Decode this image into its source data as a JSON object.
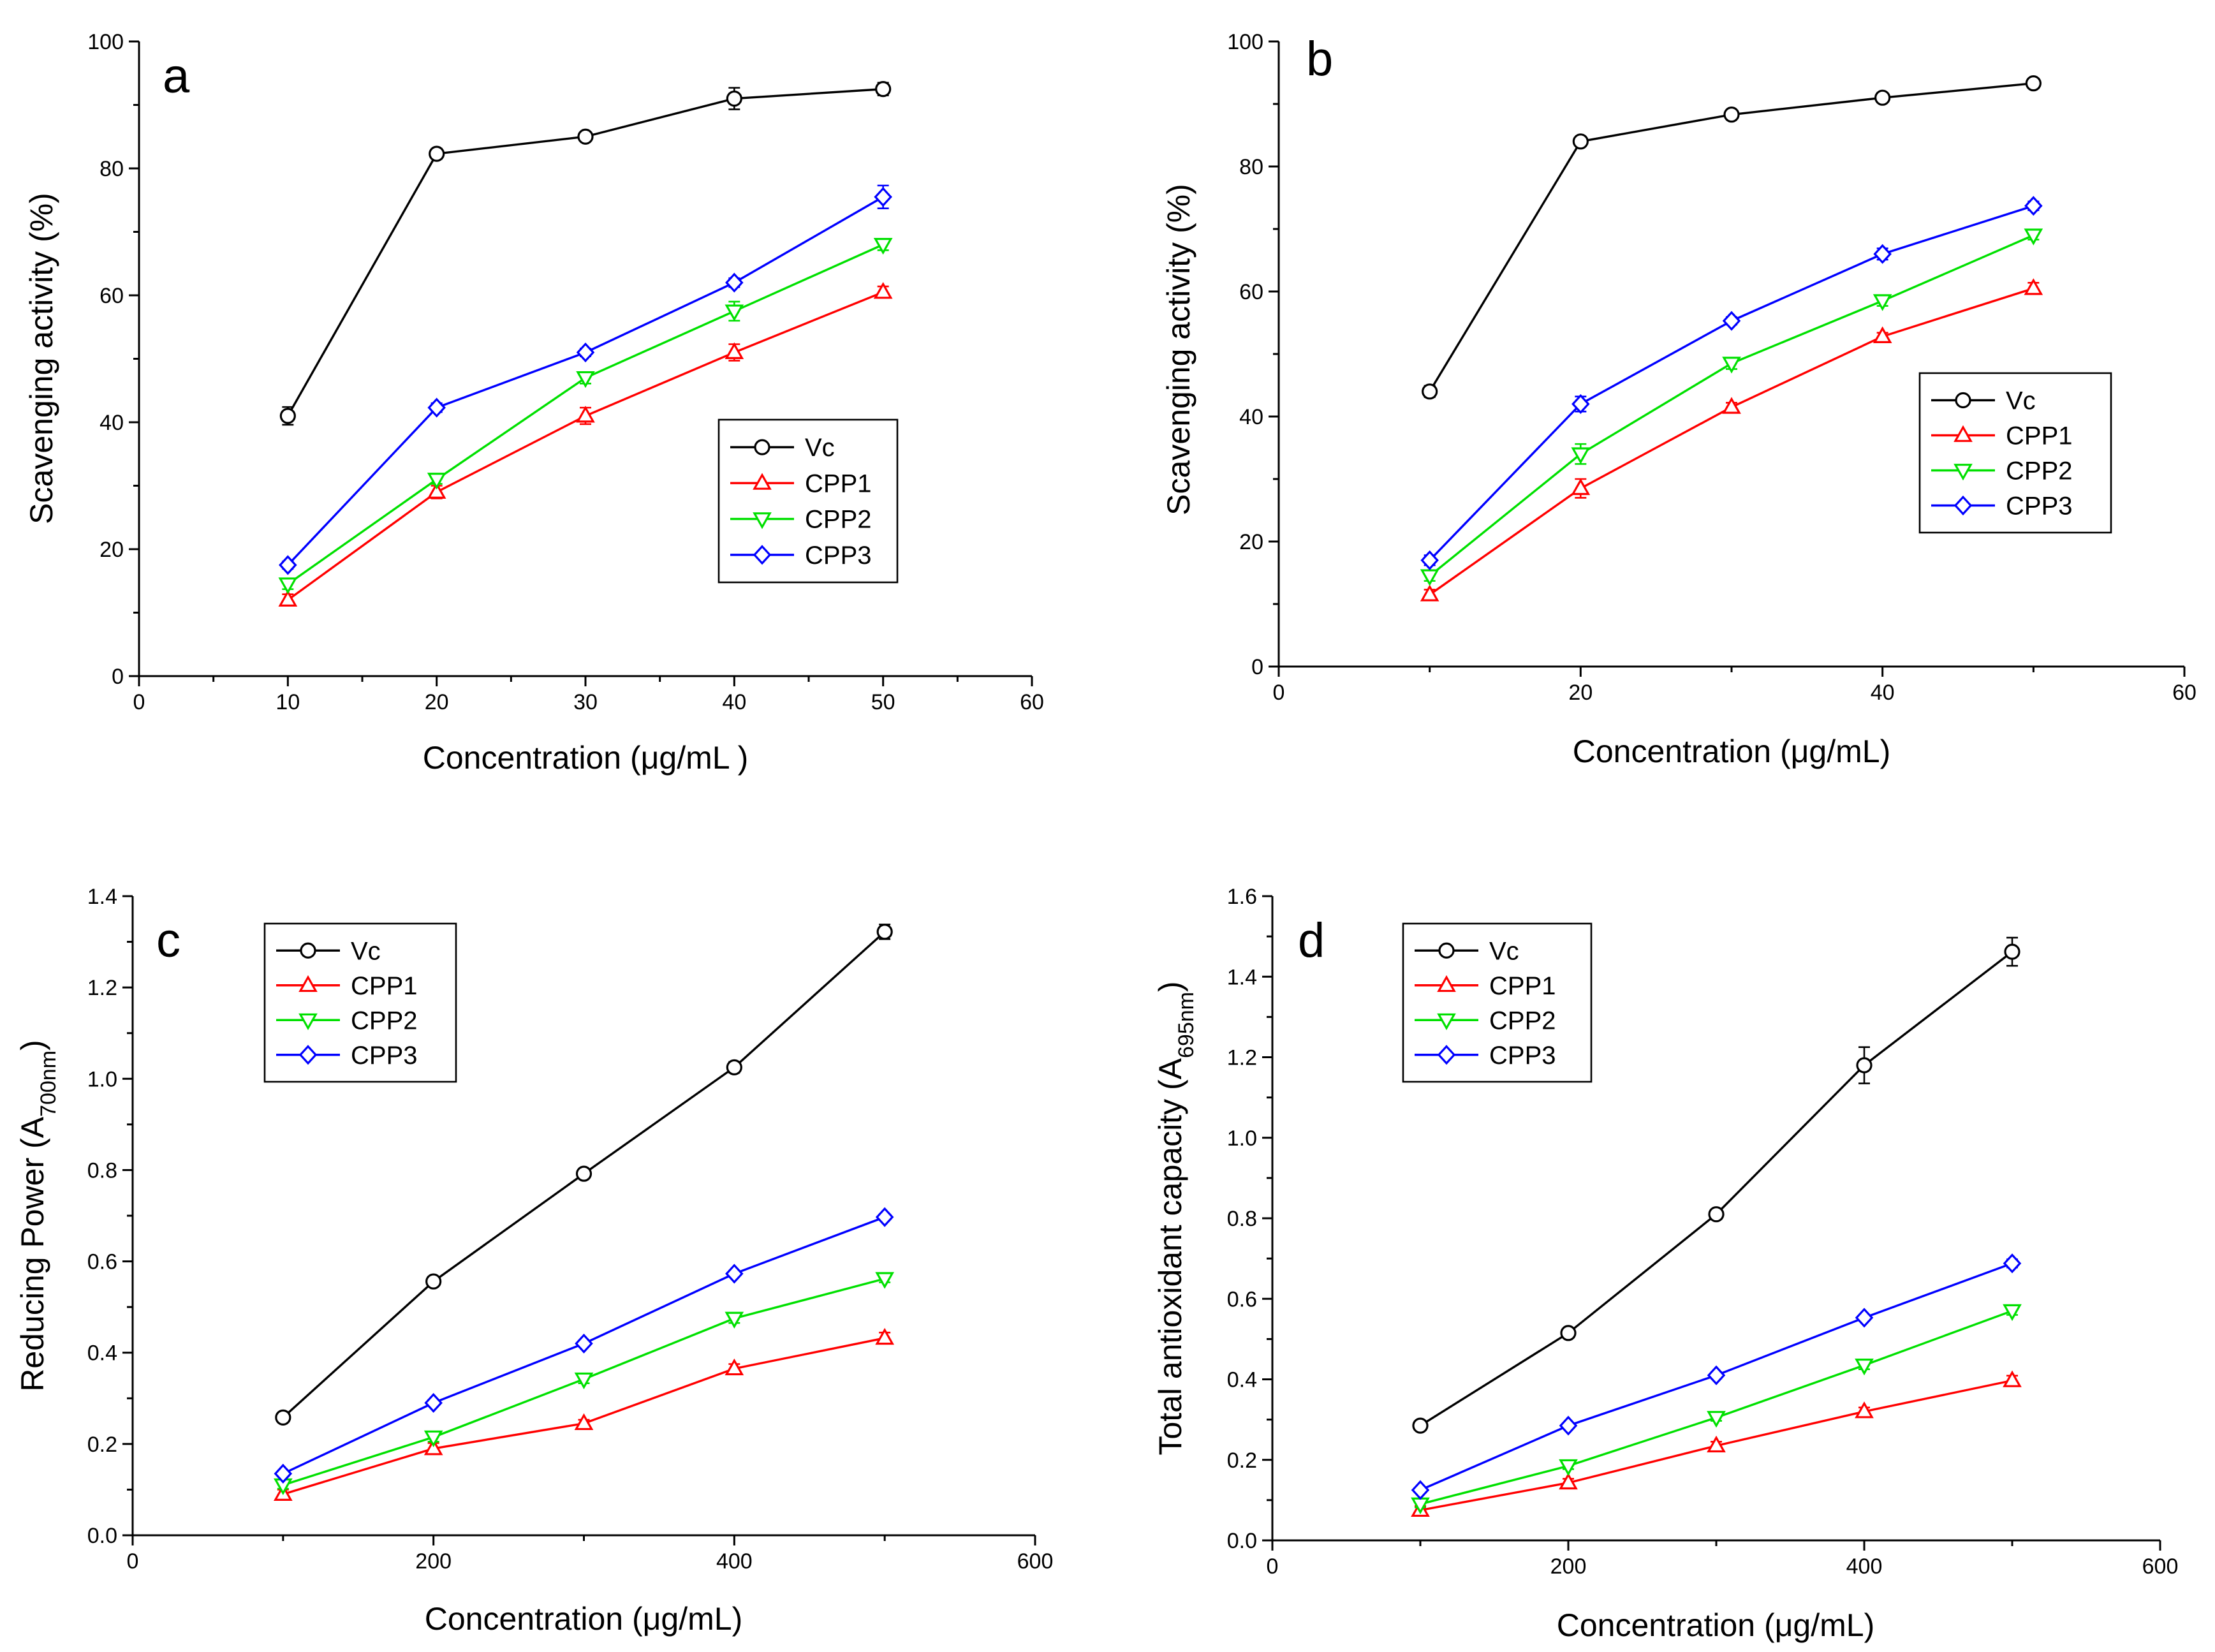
{
  "chart_data": [
    {
      "type": "line",
      "panel": "a",
      "xlabel": "Concentration (μg/mL )",
      "ylabel": "Scavenging activity (%)",
      "ylabel_sub": "",
      "ylabel_post": "",
      "xlim": [
        0,
        60
      ],
      "ylim": [
        0,
        100
      ],
      "xticks": [
        0,
        10,
        20,
        30,
        40,
        50,
        60
      ],
      "xminor": [
        5,
        15,
        25,
        35,
        45,
        55
      ],
      "yticks": [
        0,
        20,
        40,
        60,
        80,
        100
      ],
      "yminor": [
        10,
        30,
        50,
        70,
        90
      ],
      "tick_decimals": 0,
      "legend_position": "center-right",
      "x": [
        10,
        20,
        30,
        40,
        50
      ],
      "series": [
        {
          "name": "Vc",
          "marker": "circle",
          "color": "#000000",
          "values": [
            41.0,
            82.3,
            85.0,
            91.0,
            92.5
          ],
          "errors": [
            1.4,
            0.8,
            0.7,
            1.7,
            1.0
          ]
        },
        {
          "name": "CPP1",
          "marker": "triangle-up",
          "color": "#ff0000",
          "values": [
            12.0,
            29.0,
            41.0,
            51.0,
            60.5
          ],
          "errors": [
            0.9,
            1.0,
            1.3,
            1.3,
            0.9
          ]
        },
        {
          "name": "CPP2",
          "marker": "triangle-down",
          "color": "#00e000",
          "values": [
            14.5,
            31.0,
            47.0,
            57.5,
            68.0
          ],
          "errors": [
            0.8,
            0.7,
            0.9,
            1.5,
            0.9
          ]
        },
        {
          "name": "CPP3",
          "marker": "diamond",
          "color": "#0000ff",
          "values": [
            17.5,
            42.3,
            51.0,
            62.0,
            75.5
          ],
          "errors": [
            0.6,
            0.7,
            0.6,
            0.7,
            1.8
          ]
        }
      ]
    },
    {
      "type": "line",
      "panel": "b",
      "xlabel": "Concentration (μg/mL)",
      "ylabel": "Scavenging activity (%)",
      "ylabel_sub": "",
      "ylabel_post": "",
      "xlim": [
        0,
        60
      ],
      "ylim": [
        0,
        100
      ],
      "xticks": [
        0,
        20,
        40,
        60
      ],
      "xminor": [
        10,
        30,
        50
      ],
      "yticks": [
        0,
        20,
        40,
        60,
        80,
        100
      ],
      "yminor": [
        10,
        30,
        50,
        70,
        90
      ],
      "tick_decimals": 0,
      "legend_position": "center-right",
      "x": [
        10,
        20,
        30,
        40,
        50
      ],
      "series": [
        {
          "name": "Vc",
          "marker": "circle",
          "color": "#000000",
          "values": [
            44.0,
            84.0,
            88.3,
            91.0,
            93.3
          ],
          "errors": [
            0.9,
            0.5,
            0.5,
            0.4,
            0.4
          ]
        },
        {
          "name": "CPP1",
          "marker": "triangle-up",
          "color": "#ff0000",
          "values": [
            11.5,
            28.5,
            41.5,
            52.8,
            60.5
          ],
          "errors": [
            0.8,
            1.5,
            0.7,
            0.6,
            0.9
          ]
        },
        {
          "name": "CPP2",
          "marker": "triangle-down",
          "color": "#00e000",
          "values": [
            14.5,
            34.0,
            48.5,
            58.5,
            69.0
          ],
          "errors": [
            0.8,
            1.6,
            0.9,
            0.8,
            0.7
          ]
        },
        {
          "name": "CPP3",
          "marker": "diamond",
          "color": "#0000ff",
          "values": [
            17.0,
            42.0,
            55.3,
            66.0,
            73.7
          ],
          "errors": [
            0.8,
            1.2,
            0.6,
            0.9,
            0.7
          ]
        }
      ]
    },
    {
      "type": "line",
      "panel": "c",
      "xlabel": "Concentration (μg/mL)",
      "ylabel": "Reducing Power (A",
      "ylabel_sub": "700nm",
      "ylabel_post": ")",
      "xlim": [
        0,
        600
      ],
      "ylim": [
        0,
        1.4
      ],
      "xticks": [
        0,
        200,
        400,
        600
      ],
      "xminor": [
        100,
        300,
        500
      ],
      "yticks": [
        0.0,
        0.2,
        0.4,
        0.6,
        0.8,
        1.0,
        1.2,
        1.4
      ],
      "yminor": [
        0.1,
        0.3,
        0.5,
        0.7,
        0.9,
        1.1,
        1.3
      ],
      "tick_decimals": 1,
      "legend_position": "top-left",
      "x": [
        100,
        200,
        300,
        400,
        500
      ],
      "series": [
        {
          "name": "Vc",
          "marker": "circle",
          "color": "#000000",
          "values": [
            0.258,
            0.556,
            0.792,
            1.025,
            1.322
          ],
          "errors": [
            0.008,
            0.006,
            0.006,
            0.012,
            0.016
          ]
        },
        {
          "name": "CPP1",
          "marker": "triangle-up",
          "color": "#ff0000",
          "values": [
            0.09,
            0.19,
            0.245,
            0.365,
            0.432
          ],
          "errors": [
            0.01,
            0.012,
            0.008,
            0.01,
            0.012
          ]
        },
        {
          "name": "CPP2",
          "marker": "triangle-down",
          "color": "#00e000",
          "values": [
            0.11,
            0.215,
            0.342,
            0.475,
            0.562
          ],
          "errors": [
            0.008,
            0.01,
            0.009,
            0.01,
            0.008
          ]
        },
        {
          "name": "CPP3",
          "marker": "diamond",
          "color": "#0000ff",
          "values": [
            0.135,
            0.29,
            0.42,
            0.573,
            0.697
          ],
          "errors": [
            0.006,
            0.006,
            0.006,
            0.006,
            0.007
          ]
        }
      ]
    },
    {
      "type": "line",
      "panel": "d",
      "xlabel": "Concentration (μg/mL)",
      "ylabel": "Total antioxidant capacity (A",
      "ylabel_sub": "695nm",
      "ylabel_post": ")",
      "xlim": [
        0,
        600
      ],
      "ylim": [
        0,
        1.6
      ],
      "xticks": [
        0,
        200,
        400,
        600
      ],
      "xminor": [
        100,
        300,
        500
      ],
      "yticks": [
        0.0,
        0.2,
        0.4,
        0.6,
        0.8,
        1.0,
        1.2,
        1.4,
        1.6
      ],
      "yminor": [
        0.1,
        0.3,
        0.5,
        0.7,
        0.9,
        1.1,
        1.3,
        1.5
      ],
      "tick_decimals": 1,
      "legend_position": "top-left",
      "x": [
        100,
        200,
        300,
        400,
        500
      ],
      "series": [
        {
          "name": "Vc",
          "marker": "circle",
          "color": "#000000",
          "values": [
            0.285,
            0.515,
            0.81,
            1.18,
            1.462
          ],
          "errors": [
            0.008,
            0.01,
            0.01,
            0.045,
            0.035
          ]
        },
        {
          "name": "CPP1",
          "marker": "triangle-up",
          "color": "#ff0000",
          "values": [
            0.075,
            0.143,
            0.235,
            0.32,
            0.397
          ],
          "errors": [
            0.01,
            0.01,
            0.01,
            0.01,
            0.012
          ]
        },
        {
          "name": "CPP2",
          "marker": "triangle-down",
          "color": "#00e000",
          "values": [
            0.09,
            0.185,
            0.305,
            0.435,
            0.57
          ],
          "errors": [
            0.008,
            0.008,
            0.008,
            0.01,
            0.01
          ]
        },
        {
          "name": "CPP3",
          "marker": "diamond",
          "color": "#0000ff",
          "values": [
            0.125,
            0.285,
            0.41,
            0.553,
            0.688
          ],
          "errors": [
            0.006,
            0.007,
            0.008,
            0.007,
            0.01
          ]
        }
      ]
    }
  ]
}
